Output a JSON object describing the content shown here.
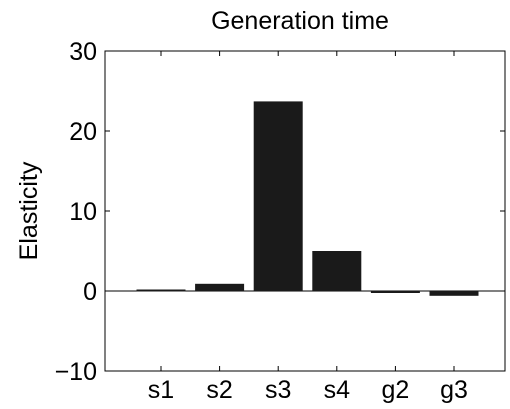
{
  "chart_data": {
    "type": "bar",
    "title": "Generation time",
    "xlabel": "",
    "ylabel": "Elasticity",
    "categories": [
      "s1",
      "s2",
      "s3",
      "s4",
      "g2",
      "g3"
    ],
    "values": [
      0.05,
      0.9,
      23.7,
      5.0,
      -0.25,
      -0.6
    ],
    "ylim": [
      -10,
      30
    ],
    "yticks": [
      -10,
      0,
      10,
      20,
      30
    ],
    "ytick_labels": [
      "−10",
      "0",
      "10",
      "20",
      "30"
    ],
    "bar_color": "#1a1a1a",
    "grid": false,
    "legend": "none"
  }
}
